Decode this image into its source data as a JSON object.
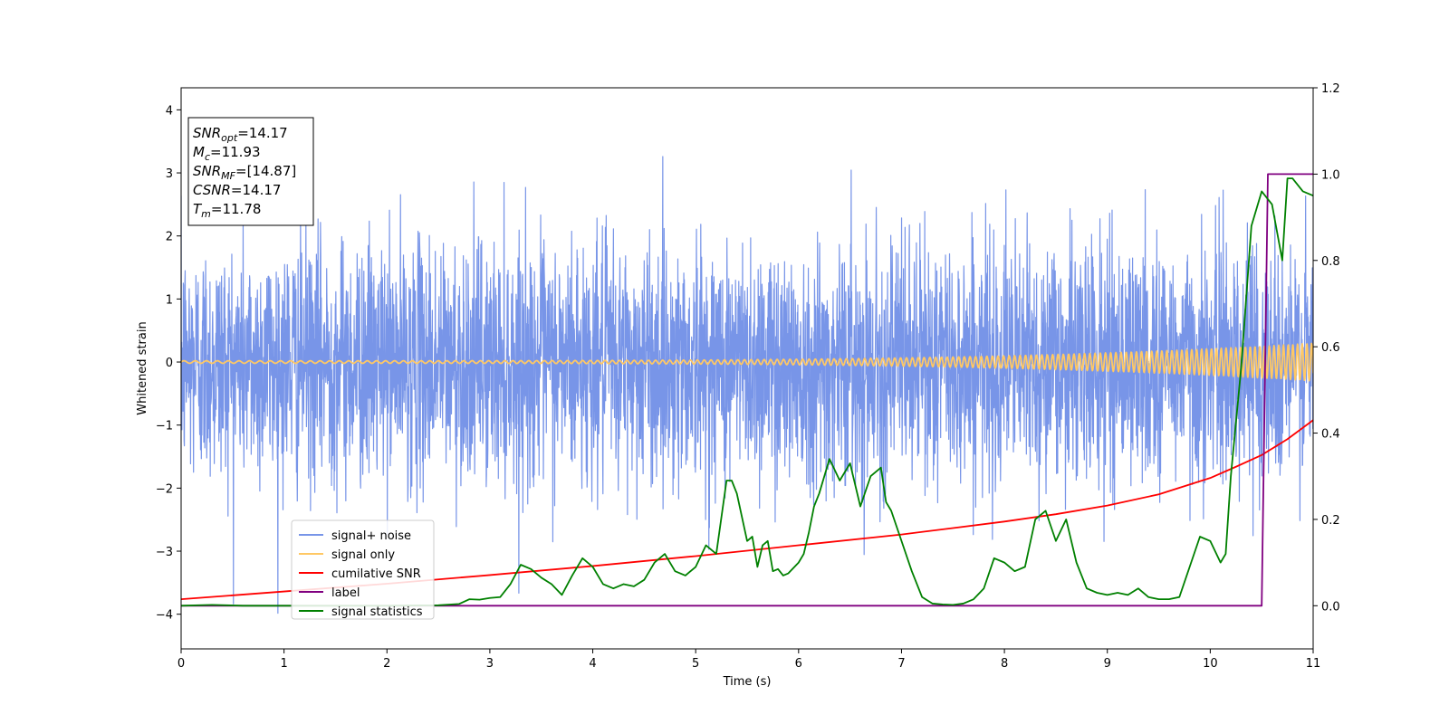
{
  "chart_data": {
    "type": "line",
    "xlabel": "Time (s)",
    "ylabel": "Whitened strain",
    "xlim": [
      0,
      11
    ],
    "ylim": [
      -4.55,
      4.35
    ],
    "y2lim": [
      -0.1,
      1.2
    ],
    "xticks": [
      "0",
      "1",
      "2",
      "3",
      "4",
      "5",
      "6",
      "7",
      "8",
      "9",
      "10",
      "11"
    ],
    "yticks": [
      "4",
      "3",
      "2",
      "1",
      "0",
      "−1",
      "−2",
      "−3",
      "−4"
    ],
    "y2ticks": [
      "1.2",
      "1.0",
      "0.8",
      "0.6",
      "0.4",
      "0.2",
      "0.0"
    ],
    "legend_position": "lower-left",
    "info_box": {
      "lines": [
        {
          "base": "SNR",
          "sub": "opt",
          "value": "=14.17"
        },
        {
          "base": "M",
          "sub": "c",
          "value": "=11.93"
        },
        {
          "base": "SNR",
          "sub": "MF",
          "value": "=[14.87]"
        },
        {
          "base": "CSNR",
          "sub": "",
          "value": "=14.17"
        },
        {
          "base": "T",
          "sub": "m",
          "value": "=11.78"
        }
      ]
    },
    "series": [
      {
        "name": "signal+ noise",
        "axis": "left",
        "color": "#7895e8",
        "kind": "noise",
        "std": 1.0,
        "t_range": [
          0,
          11
        ]
      },
      {
        "name": "signal only",
        "axis": "left",
        "color": "#ffc864",
        "kind": "chirp",
        "amplitude_start": 0.02,
        "amplitude_end": 0.3,
        "t_range": [
          0,
          11
        ]
      },
      {
        "name": "cumilative SNR",
        "axis": "right",
        "color": "#ff0000",
        "x": [
          0,
          1,
          2,
          3,
          4,
          5,
          6,
          7,
          7.5,
          8,
          8.5,
          9,
          9.5,
          10,
          10.25,
          10.5,
          10.75,
          11
        ],
        "y": [
          0.015,
          0.033,
          0.051,
          0.071,
          0.092,
          0.115,
          0.14,
          0.165,
          0.18,
          0.195,
          0.212,
          0.232,
          0.258,
          0.296,
          0.322,
          0.349,
          0.386,
          0.43
        ]
      },
      {
        "name": "label",
        "axis": "right",
        "color": "#800080",
        "x": [
          0,
          10.5,
          10.56,
          11
        ],
        "y": [
          0.0,
          0.0,
          1.0,
          1.0
        ]
      },
      {
        "name": "signal statistics",
        "axis": "right",
        "color": "#008000",
        "x": [
          0,
          0.3,
          0.6,
          1.0,
          1.5,
          2.0,
          2.5,
          2.7,
          2.8,
          2.9,
          3.0,
          3.1,
          3.2,
          3.3,
          3.4,
          3.5,
          3.6,
          3.7,
          3.8,
          3.9,
          4.0,
          4.1,
          4.2,
          4.3,
          4.4,
          4.5,
          4.6,
          4.7,
          4.8,
          4.9,
          5.0,
          5.1,
          5.2,
          5.3,
          5.35,
          5.4,
          5.5,
          5.55,
          5.6,
          5.65,
          5.7,
          5.75,
          5.8,
          5.85,
          5.9,
          6.0,
          6.05,
          6.1,
          6.15,
          6.2,
          6.25,
          6.3,
          6.4,
          6.5,
          6.6,
          6.7,
          6.8,
          6.85,
          6.9,
          7.0,
          7.1,
          7.2,
          7.3,
          7.4,
          7.5,
          7.6,
          7.7,
          7.8,
          7.9,
          8.0,
          8.1,
          8.2,
          8.3,
          8.4,
          8.5,
          8.6,
          8.7,
          8.8,
          8.9,
          9.0,
          9.1,
          9.2,
          9.3,
          9.4,
          9.5,
          9.6,
          9.7,
          9.8,
          9.9,
          10.0,
          10.1,
          10.15,
          10.2,
          10.3,
          10.4,
          10.5,
          10.6,
          10.7,
          10.75,
          10.8,
          10.9,
          11.0
        ],
        "y": [
          0.0,
          0.002,
          0.0,
          0.0,
          0.0,
          0.0,
          0.001,
          0.004,
          0.015,
          0.014,
          0.018,
          0.02,
          0.05,
          0.095,
          0.085,
          0.065,
          0.05,
          0.025,
          0.07,
          0.11,
          0.09,
          0.05,
          0.04,
          0.05,
          0.045,
          0.06,
          0.1,
          0.12,
          0.08,
          0.07,
          0.09,
          0.14,
          0.12,
          0.29,
          0.29,
          0.26,
          0.15,
          0.16,
          0.09,
          0.14,
          0.15,
          0.08,
          0.085,
          0.07,
          0.075,
          0.1,
          0.12,
          0.17,
          0.23,
          0.26,
          0.3,
          0.34,
          0.29,
          0.33,
          0.23,
          0.3,
          0.32,
          0.24,
          0.22,
          0.15,
          0.08,
          0.02,
          0.005,
          0.003,
          0.002,
          0.005,
          0.015,
          0.04,
          0.11,
          0.1,
          0.08,
          0.09,
          0.2,
          0.22,
          0.15,
          0.2,
          0.1,
          0.04,
          0.03,
          0.025,
          0.03,
          0.025,
          0.04,
          0.02,
          0.015,
          0.015,
          0.02,
          0.09,
          0.16,
          0.15,
          0.1,
          0.12,
          0.3,
          0.55,
          0.88,
          0.96,
          0.93,
          0.8,
          0.99,
          0.99,
          0.96,
          0.95
        ]
      }
    ]
  }
}
